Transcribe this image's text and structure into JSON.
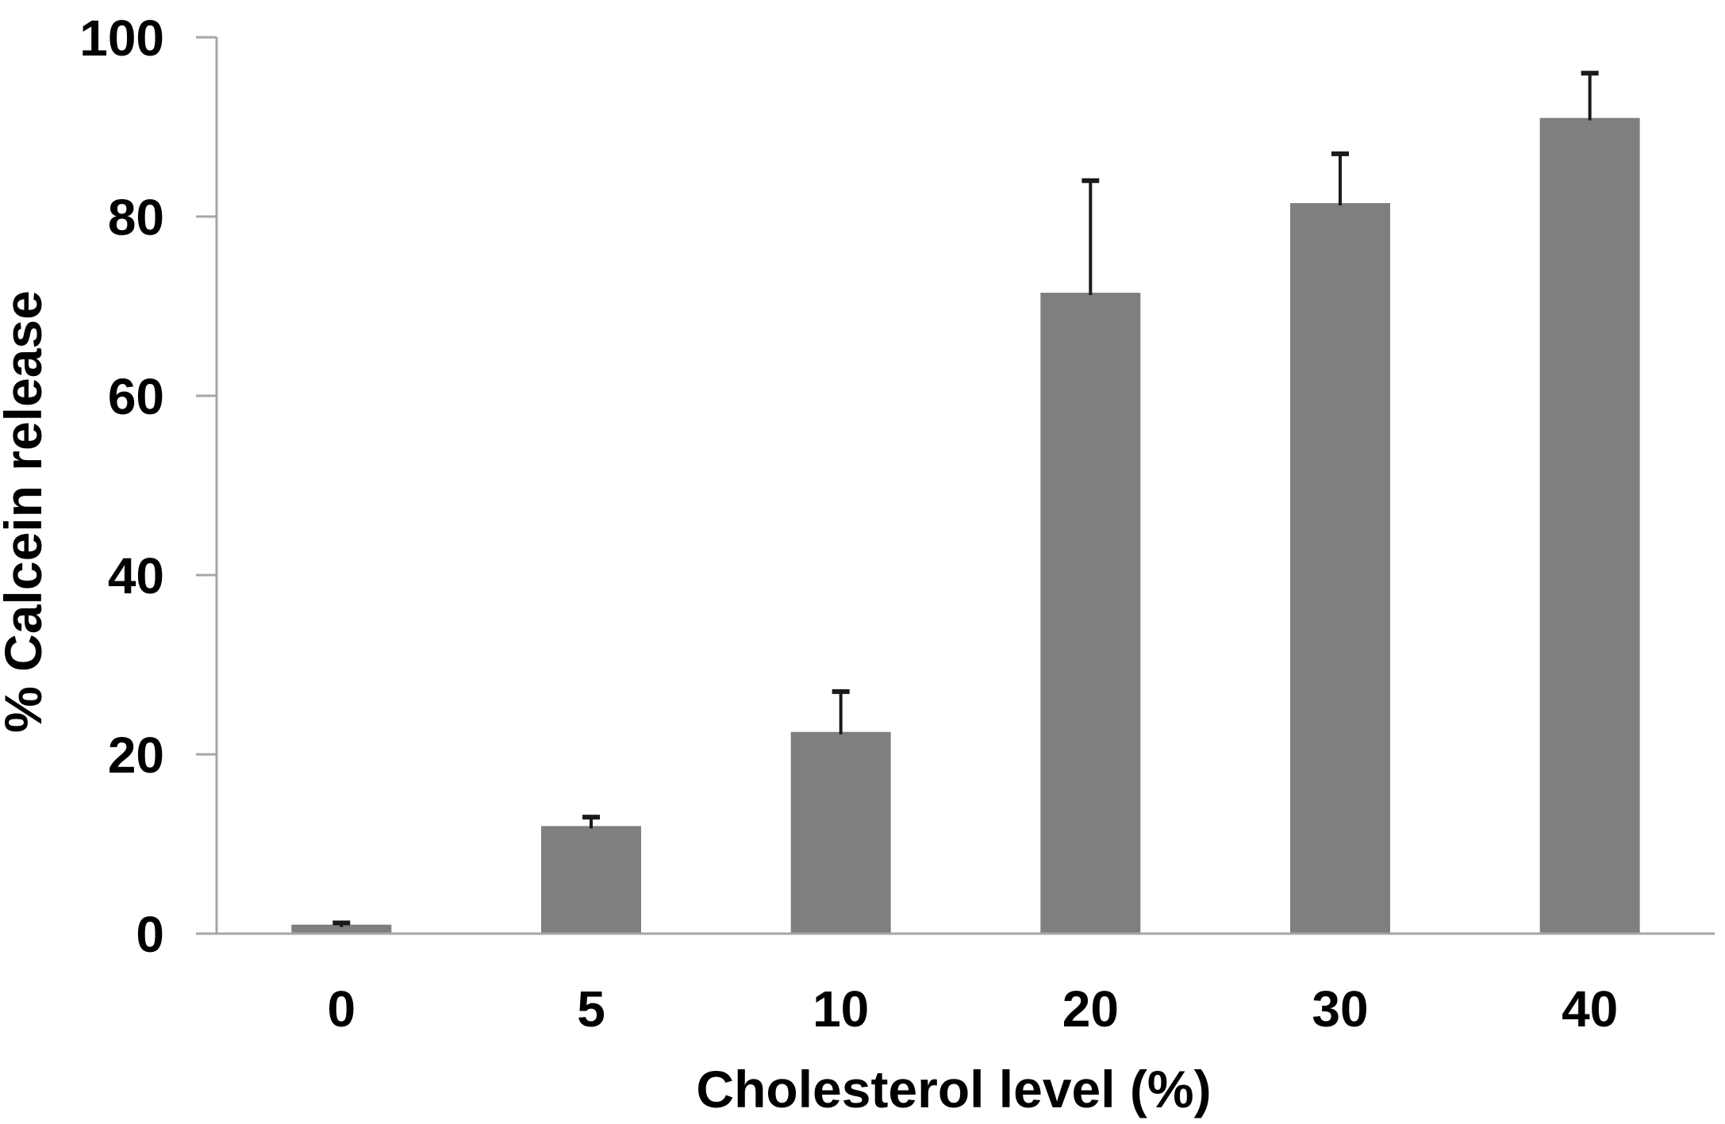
{
  "chart_data": {
    "type": "bar",
    "title": "",
    "xlabel": "Cholesterol level (%)",
    "ylabel": "% Calcein release",
    "categories": [
      "0",
      "5",
      "10",
      "20",
      "30",
      "40"
    ],
    "series": [
      {
        "name": "% Calcein release",
        "values": [
          1,
          12,
          22.5,
          71.5,
          81.5,
          91
        ],
        "errors_plus": [
          0.2,
          1,
          4.5,
          12.5,
          5.5,
          5
        ]
      }
    ],
    "y_ticks": [
      0,
      20,
      40,
      60,
      80,
      100
    ],
    "ylim": [
      0,
      100
    ],
    "grid": "off",
    "legend": "none",
    "bar_color": "#7f7f7f",
    "error_bar_color": "#1a1a1a",
    "axis_line_color": "#a6a6a6",
    "text_color": "#000000",
    "background_color": "#ffffff"
  }
}
